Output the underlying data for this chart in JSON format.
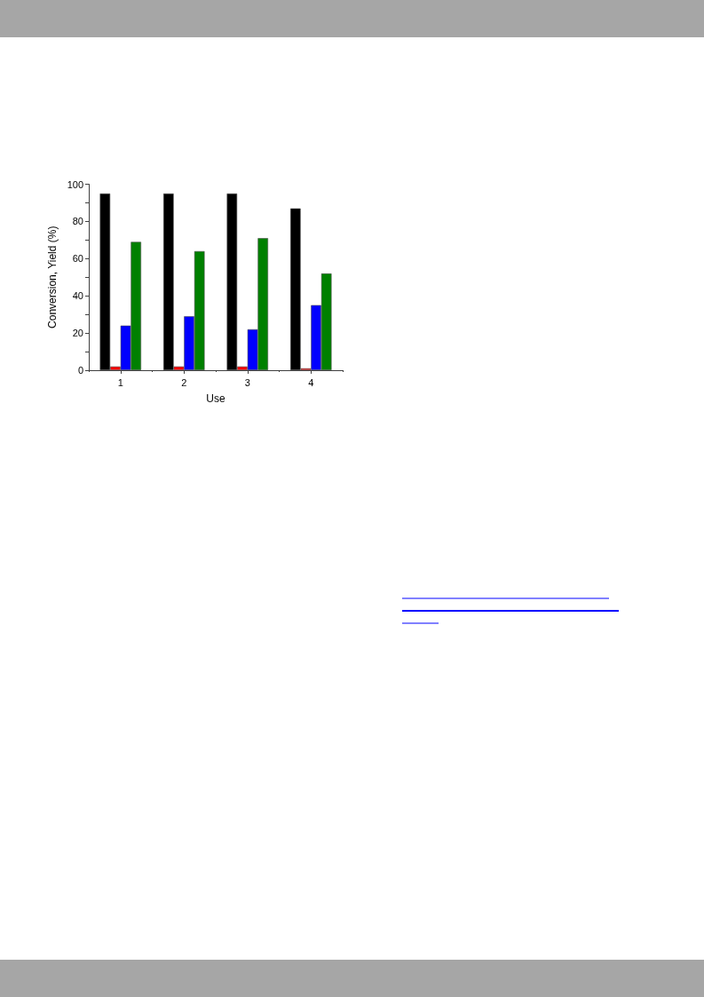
{
  "chart_data": {
    "type": "bar",
    "xlabel": "Use",
    "ylabel": "Conversion, Yield (%)",
    "categories": [
      "1",
      "2",
      "3",
      "4"
    ],
    "series": [
      {
        "color": "#000000",
        "values": [
          95,
          95,
          95,
          87
        ]
      },
      {
        "color": "#ff0000",
        "values": [
          2,
          2,
          2,
          1
        ]
      },
      {
        "color": "#0000ff",
        "values": [
          24,
          29,
          22,
          35
        ]
      },
      {
        "color": "#008000",
        "values": [
          69,
          64,
          71,
          52
        ]
      }
    ],
    "ylim": [
      0,
      100
    ],
    "yticks": [
      0,
      {
        "value": 10,
        "label": null
      },
      20,
      {
        "value": 30,
        "label": null
      },
      40,
      {
        "value": 50,
        "label": null
      },
      60,
      {
        "value": 70,
        "label": null
      },
      80,
      {
        "value": 90,
        "label": null
      },
      100
    ]
  }
}
